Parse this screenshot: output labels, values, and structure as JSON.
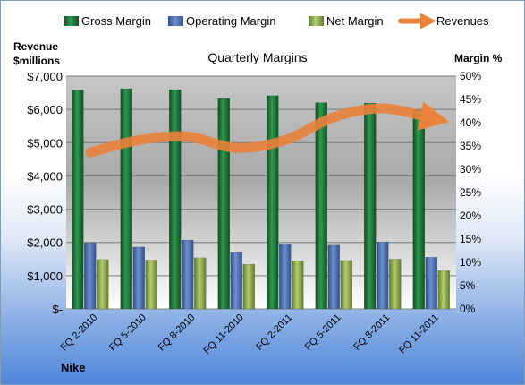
{
  "chart_data": {
    "type": "bar",
    "title": "Quarterly Margins",
    "left_axis_label_line1": "Revenue",
    "left_axis_label_line2": "$millions",
    "right_axis_label": "Margin %",
    "footer_label": "Nike",
    "categories": [
      "FQ 2-2010",
      "FQ 5-2010",
      "FQ 8-2010",
      "FQ 11-2010",
      "FQ 2-2011",
      "FQ 5-2011",
      "FQ 8-2011",
      "FQ 11-2011"
    ],
    "left_axis": {
      "ylim": [
        0,
        7000
      ],
      "ticks": [
        "$-",
        "$1,000",
        "$2,000",
        "$3,000",
        "$4,000",
        "$5,000",
        "$6,000",
        "$7,000"
      ]
    },
    "right_axis": {
      "ylim": [
        0,
        50
      ],
      "ticks": [
        "0%",
        "5%",
        "10%",
        "15%",
        "20%",
        "25%",
        "30%",
        "35%",
        "40%",
        "45%",
        "50%"
      ]
    },
    "legend_position": "top",
    "series": [
      {
        "name": "Gross Margin",
        "type": "bar",
        "axis": "right",
        "color": "#1f7a3a",
        "values": [
          47.0,
          47.3,
          47.1,
          45.2,
          45.8,
          44.3,
          44.2,
          42.7
        ]
      },
      {
        "name": "Operating Margin",
        "type": "bar",
        "axis": "right",
        "color": "#4a6fb5",
        "values": [
          14.2,
          13.3,
          14.8,
          12.1,
          13.9,
          13.7,
          14.4,
          11.1
        ]
      },
      {
        "name": "Net Margin",
        "type": "bar",
        "axis": "right",
        "color": "#8fb04a",
        "values": [
          10.6,
          10.5,
          11.0,
          9.6,
          10.3,
          10.4,
          10.7,
          8.2
        ]
      },
      {
        "name": "Revenues",
        "type": "line",
        "axis": "left",
        "color": "#e9823a",
        "values": [
          4710,
          5080,
          5180,
          4840,
          5080,
          5770,
          6030,
          5730
        ]
      }
    ]
  }
}
